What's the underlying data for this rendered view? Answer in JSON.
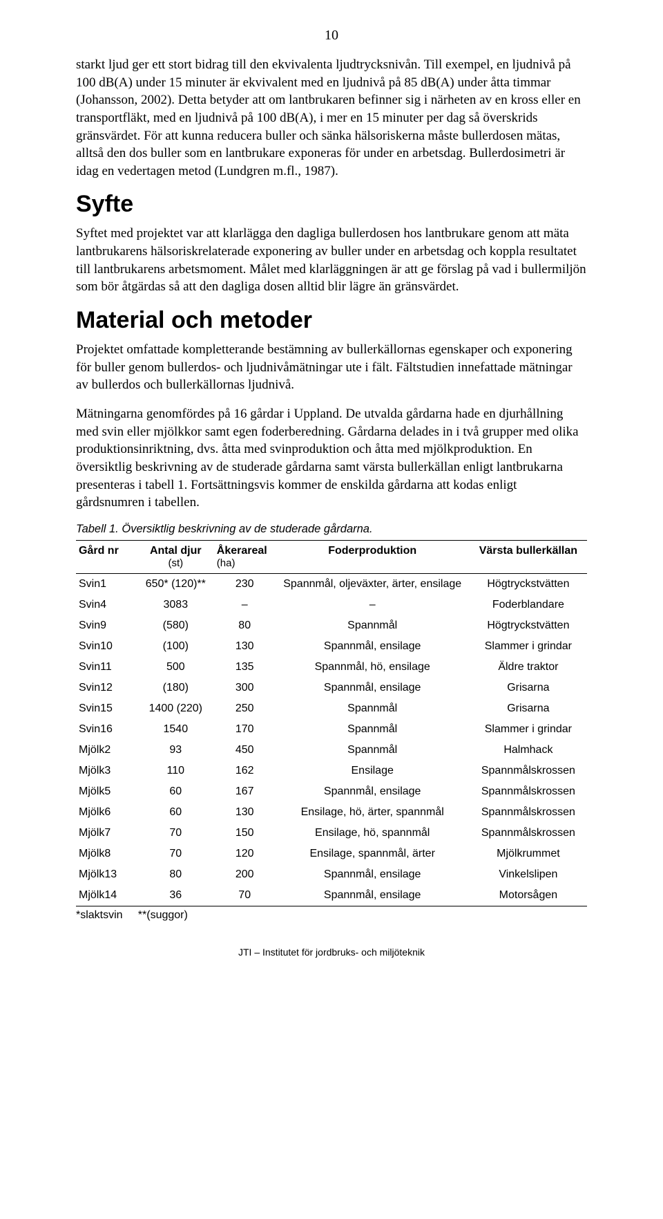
{
  "page_number": "10",
  "paragraphs": {
    "p1": "starkt ljud ger ett stort bidrag till den ekvivalenta ljudtrycksnivån. Till exempel, en ljudnivå på 100 dB(A) under 15 minuter är ekvivalent med en ljudnivå på 85 dB(A) under åtta timmar (Johansson, 2002). Detta betyder att om lantbrukaren befinner sig i närheten av en kross eller en transportfläkt, med en ljudnivå på 100 dB(A), i mer en 15 minuter per dag så överskrids gränsvärdet. För att kunna reducera buller och sänka hälsoriskerna måste bullerdosen mätas, alltså den dos buller som en lantbrukare exponeras för under en arbetsdag. Bullerdosimetri är idag en vedertagen metod (Lundgren m.fl., 1987).",
    "p2": "Syftet med projektet var att klarlägga den dagliga bullerdosen hos lantbrukare genom att mäta lantbrukarens hälsoriskrelaterade exponering av buller under en arbetsdag och koppla resultatet till lantbrukarens arbetsmoment. Målet med klarläggningen är att ge förslag på vad i bullermiljön som bör åtgärdas så att den dagliga dosen alltid blir lägre än gränsvärdet.",
    "p3": "Projektet omfattade kompletterande bestämning av bullerkällornas egenskaper och exponering för buller genom bullerdos- och ljudnivåmätningar ute i fält. Fältstudien innefattade mätningar av bullerdos och bullerkällornas ljudnivå.",
    "p4": "Mätningarna genomfördes på 16 gårdar i Uppland. De utvalda gårdarna hade en djurhållning med svin eller mjölkkor samt egen foderberedning. Gårdarna delades in i två grupper med olika produktionsinriktning, dvs. åtta med svinproduktion och åtta med mjölkproduktion. En översiktlig beskrivning av de studerade gårdarna samt värsta bullerkällan enligt lantbrukarna presenteras i tabell 1. Fortsättningsvis kommer de enskilda gårdarna att kodas enligt gårdsnumren i tabellen."
  },
  "headings": {
    "syfte": "Syfte",
    "material": "Material och metoder"
  },
  "table": {
    "caption": "Tabell 1. Översiktlig beskrivning av de studerade gårdarna.",
    "columns": {
      "c1": "Gård nr",
      "c2a": "Antal djur",
      "c2b": "(st)",
      "c3a": "Åkerareal",
      "c3b": "(ha)",
      "c4": "Foderproduktion",
      "c5": "Värsta bullerkällan"
    },
    "rows": [
      [
        "Svin1",
        "650* (120)**",
        "230",
        "Spannmål, oljeväxter, ärter, ensilage",
        "Högtryckstvätten"
      ],
      [
        "Svin4",
        "3083",
        "–",
        "–",
        "Foderblandare"
      ],
      [
        "Svin9",
        "(580)",
        "80",
        "Spannmål",
        "Högtryckstvätten"
      ],
      [
        "Svin10",
        "(100)",
        "130",
        "Spannmål, ensilage",
        "Slammer i grindar"
      ],
      [
        "Svin11",
        "500",
        "135",
        "Spannmål, hö, ensilage",
        "Äldre traktor"
      ],
      [
        "Svin12",
        "(180)",
        "300",
        "Spannmål, ensilage",
        "Grisarna"
      ],
      [
        "Svin15",
        "1400 (220)",
        "250",
        "Spannmål",
        "Grisarna"
      ],
      [
        "Svin16",
        "1540",
        "170",
        "Spannmål",
        "Slammer i grindar"
      ],
      [
        "Mjölk2",
        "93",
        "450",
        "Spannmål",
        "Halmhack"
      ],
      [
        "Mjölk3",
        "110",
        "162",
        "Ensilage",
        "Spannmålskrossen"
      ],
      [
        "Mjölk5",
        "60",
        "167",
        "Spannmål, ensilage",
        "Spannmålskrossen"
      ],
      [
        "Mjölk6",
        "60",
        "130",
        "Ensilage, hö, ärter, spannmål",
        "Spannmålskrossen"
      ],
      [
        "Mjölk7",
        "70",
        "150",
        "Ensilage, hö, spannmål",
        "Spannmålskrossen"
      ],
      [
        "Mjölk8",
        "70",
        "120",
        "Ensilage, spannmål, ärter",
        "Mjölkrummet"
      ],
      [
        "Mjölk13",
        "80",
        "200",
        "Spannmål, ensilage",
        "Vinkelslipen"
      ],
      [
        "Mjölk14",
        "36",
        "70",
        "Spannmål, ensilage",
        "Motorsågen"
      ]
    ],
    "footnote": "*slaktsvin     **(suggor)"
  },
  "footer": "JTI – Institutet för jordbruks- och miljöteknik"
}
